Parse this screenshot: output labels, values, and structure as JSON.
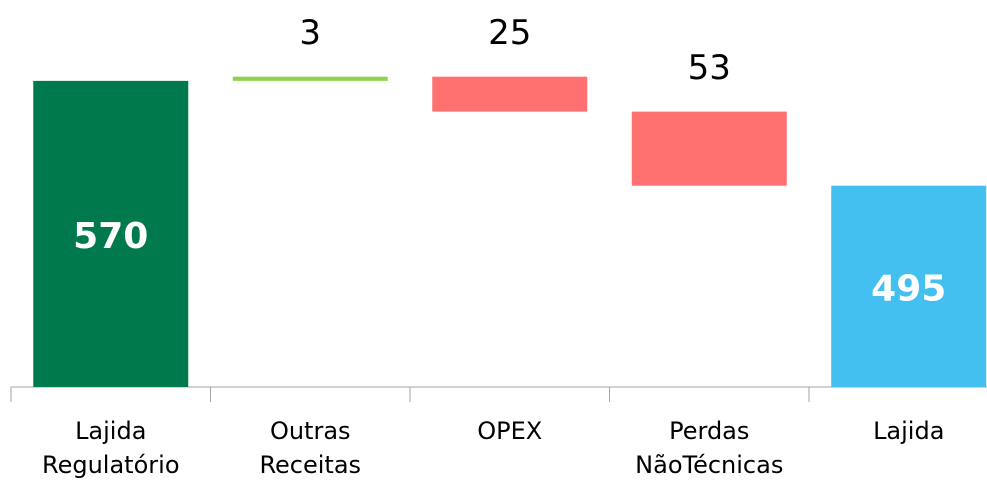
{
  "chart_data": {
    "type": "waterfall",
    "categories": [
      "Lajida Regulatório",
      "Outras Receitas",
      "OPEX",
      "Perdas NãoTécnicas",
      "Lajida"
    ],
    "values": [
      570,
      3,
      -25,
      -53,
      495
    ],
    "value_labels": [
      "570",
      "3",
      "25",
      "53",
      "495"
    ],
    "measure": [
      "absolute",
      "relative",
      "relative",
      "relative",
      "total"
    ],
    "colors": [
      "#007a4d",
      "#92d050",
      "#ff7070",
      "#ff7070",
      "#43bff0"
    ],
    "ylim": [
      351,
      630
    ]
  }
}
